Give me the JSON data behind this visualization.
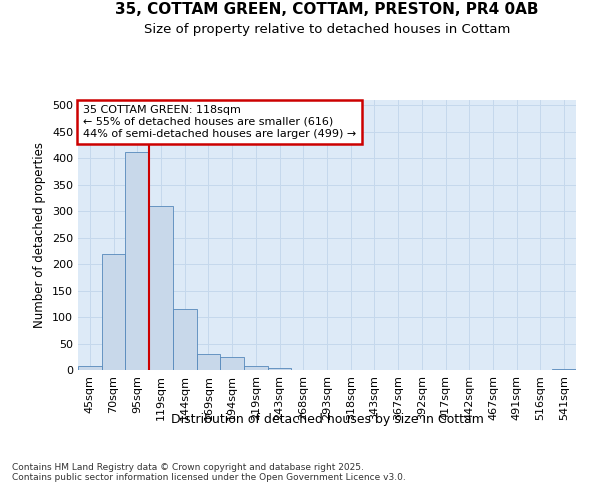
{
  "title_line1": "35, COTTAM GREEN, COTTAM, PRESTON, PR4 0AB",
  "title_line2": "Size of property relative to detached houses in Cottam",
  "xlabel": "Distribution of detached houses by size in Cottam",
  "ylabel": "Number of detached properties",
  "categories": [
    "45sqm",
    "70sqm",
    "95sqm",
    "119sqm",
    "144sqm",
    "169sqm",
    "194sqm",
    "219sqm",
    "243sqm",
    "268sqm",
    "293sqm",
    "318sqm",
    "343sqm",
    "367sqm",
    "392sqm",
    "417sqm",
    "442sqm",
    "467sqm",
    "491sqm",
    "516sqm",
    "541sqm"
  ],
  "values": [
    8,
    220,
    412,
    310,
    115,
    30,
    25,
    7,
    3,
    0,
    0,
    0,
    0,
    0,
    0,
    0,
    0,
    0,
    0,
    0,
    2
  ],
  "bar_color": "#c8d8ea",
  "bar_edge_color": "#5588bb",
  "grid_color": "#c5d8ec",
  "background_color": "#ddeaf7",
  "annotation_line1": "35 COTTAM GREEN: 118sqm",
  "annotation_line2": "← 55% of detached houses are smaller (616)",
  "annotation_line3": "44% of semi-detached houses are larger (499) →",
  "annotation_box_facecolor": "#ffffff",
  "annotation_box_edgecolor": "#cc0000",
  "vline_color": "#cc0000",
  "vline_x": 2.5,
  "ylim": [
    0,
    510
  ],
  "yticks": [
    0,
    50,
    100,
    150,
    200,
    250,
    300,
    350,
    400,
    450,
    500
  ],
  "footer_text": "Contains HM Land Registry data © Crown copyright and database right 2025.\nContains public sector information licensed under the Open Government Licence v3.0.",
  "title1_fontsize": 11,
  "title2_fontsize": 9.5,
  "tick_fontsize": 8,
  "ylabel_fontsize": 8.5,
  "xlabel_fontsize": 9,
  "annotation_fontsize": 8,
  "footer_fontsize": 6.5
}
